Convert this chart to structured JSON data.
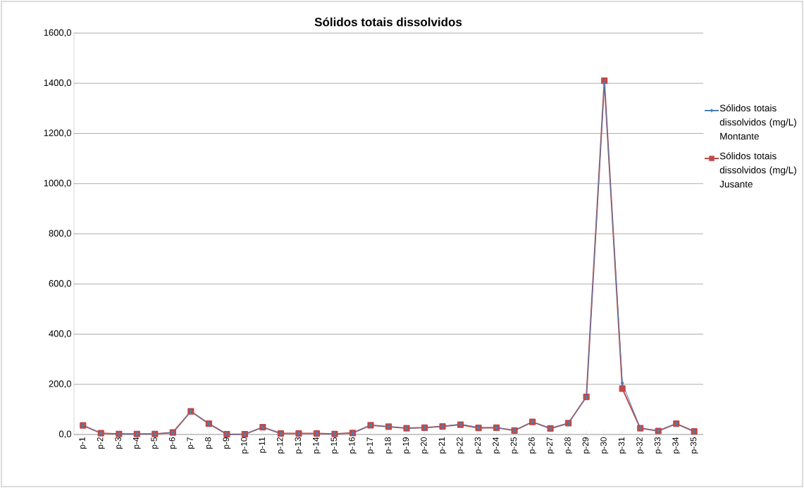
{
  "chart_data": {
    "type": "line",
    "title": "Sólidos totais dissolvidos",
    "categories": [
      "p-1",
      "p-2",
      "p-3",
      "p-4",
      "p-5",
      "p-6",
      "p-7",
      "p-8",
      "p-9",
      "p-10",
      "p-11",
      "p-12",
      "p-13",
      "p-14",
      "p-15",
      "p-16",
      "p-17",
      "p-18",
      "p-19",
      "p-20",
      "p-21",
      "p-22",
      "p-23",
      "p-24",
      "p-25",
      "p-26",
      "p-27",
      "p-28",
      "p-29",
      "p-30",
      "p-31",
      "p-32",
      "p-33",
      "p-34",
      "p-35"
    ],
    "series": [
      {
        "name": "Sólidos totais dissolvidos (mg/L) Montante",
        "color": "#4a7ebb",
        "marker": "diamond",
        "values": [
          36,
          5,
          2,
          2,
          2,
          8,
          92,
          43,
          1,
          1,
          29,
          4,
          4,
          4,
          2,
          6,
          37,
          31,
          25,
          27,
          32,
          41,
          28,
          27,
          16,
          50,
          24,
          45,
          150,
          1400,
          205,
          25,
          14,
          43,
          12
        ]
      },
      {
        "name": "Sólidos totais dissolvidos (mg/L) Jusante",
        "color": "#be4b48",
        "marker": "square",
        "values": [
          36,
          5,
          2,
          2,
          2,
          8,
          92,
          43,
          1,
          1,
          29,
          4,
          4,
          4,
          2,
          6,
          37,
          31,
          25,
          27,
          32,
          39,
          26,
          27,
          16,
          50,
          24,
          45,
          150,
          1410,
          183,
          25,
          14,
          43,
          12
        ]
      }
    ],
    "ylim": [
      0,
      1600
    ],
    "yticks": [
      {
        "value": 0,
        "label": "0,0"
      },
      {
        "value": 200,
        "label": "200,0"
      },
      {
        "value": 400,
        "label": "400,0"
      },
      {
        "value": 600,
        "label": "600,0"
      },
      {
        "value": 800,
        "label": "800,0"
      },
      {
        "value": 1000,
        "label": "1000,0"
      },
      {
        "value": 1200,
        "label": "1200,0"
      },
      {
        "value": 1400,
        "label": "1400,0"
      },
      {
        "value": 1600,
        "label": "1600,0"
      }
    ],
    "grid": "y",
    "legend": "right",
    "line_style": "solid"
  }
}
